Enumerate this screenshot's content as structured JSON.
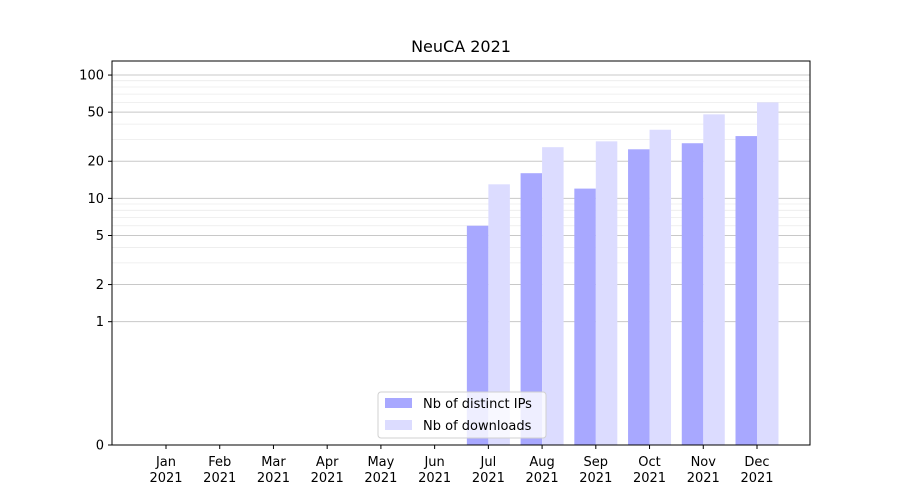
{
  "chart_data": {
    "type": "bar",
    "title": "NeuCA 2021",
    "xlabel": "",
    "ylabel": "",
    "yscale": "symlog",
    "ylim": [
      0,
      130
    ],
    "yticks": [
      0,
      1,
      2,
      5,
      10,
      20,
      50,
      100
    ],
    "grid": true,
    "legend_position": "bottom-center",
    "categories": [
      {
        "month": "Jan",
        "year": "2021"
      },
      {
        "month": "Feb",
        "year": "2021"
      },
      {
        "month": "Mar",
        "year": "2021"
      },
      {
        "month": "Apr",
        "year": "2021"
      },
      {
        "month": "May",
        "year": "2021"
      },
      {
        "month": "Jun",
        "year": "2021"
      },
      {
        "month": "Jul",
        "year": "2021"
      },
      {
        "month": "Aug",
        "year": "2021"
      },
      {
        "month": "Sep",
        "year": "2021"
      },
      {
        "month": "Oct",
        "year": "2021"
      },
      {
        "month": "Nov",
        "year": "2021"
      },
      {
        "month": "Dec",
        "year": "2021"
      }
    ],
    "series": [
      {
        "name": "Nb of distinct IPs",
        "color": "#a8a8ff",
        "values": [
          0,
          0,
          0,
          0,
          0,
          0,
          6,
          16,
          12,
          25,
          28,
          32
        ]
      },
      {
        "name": "Nb of downloads",
        "color": "#dcdcff",
        "values": [
          0,
          0,
          0,
          0,
          0,
          0,
          13,
          26,
          29,
          36,
          48,
          60
        ]
      }
    ]
  }
}
